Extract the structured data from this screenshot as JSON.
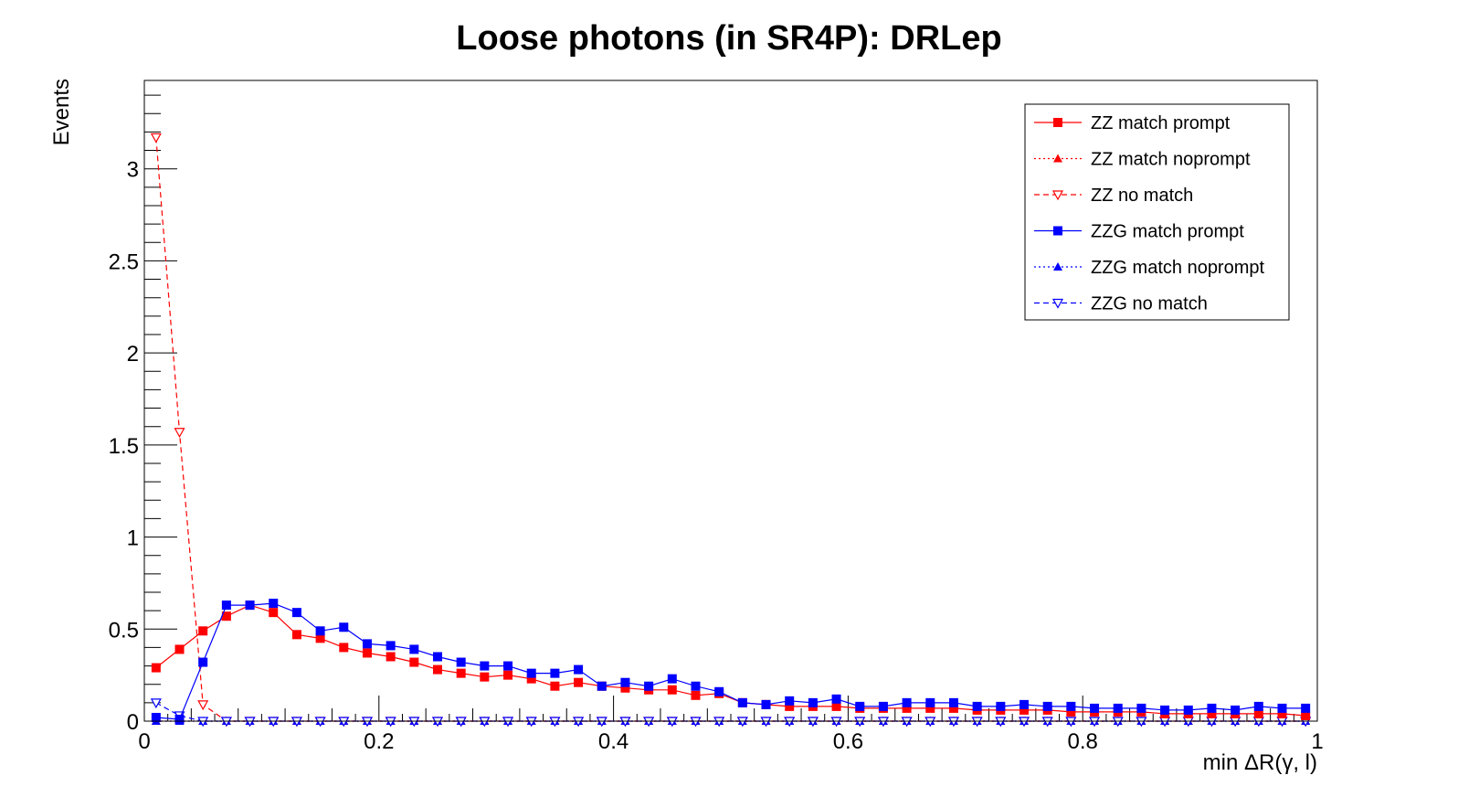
{
  "chart_data": {
    "type": "line",
    "title": "Loose photons (in SR4P): DRLep",
    "xlabel": "min ΔR(γ, l)",
    "ylabel": "Events",
    "xlim": [
      0,
      1
    ],
    "ylim": [
      0,
      3.48
    ],
    "x_ticks": [
      0,
      0.2,
      0.4,
      0.6,
      0.8,
      1
    ],
    "x_tick_labels": [
      "0",
      "0.2",
      "0.4",
      "0.6",
      "0.8",
      "1"
    ],
    "y_ticks": [
      0,
      0.5,
      1,
      1.5,
      2,
      2.5,
      3
    ],
    "y_tick_labels": [
      "0",
      "0.5",
      "1",
      "1.5",
      "2",
      "2.5",
      "3"
    ],
    "grid": false,
    "legend_position": "top-right",
    "x": [
      0.01,
      0.03,
      0.05,
      0.07,
      0.09,
      0.11,
      0.13,
      0.15,
      0.17,
      0.19,
      0.21,
      0.23,
      0.25,
      0.27,
      0.29,
      0.31,
      0.33,
      0.35,
      0.37,
      0.39,
      0.41,
      0.43,
      0.45,
      0.47,
      0.49,
      0.51,
      0.53,
      0.55,
      0.57,
      0.59,
      0.61,
      0.63,
      0.65,
      0.67,
      0.69,
      0.71,
      0.73,
      0.75,
      0.77,
      0.79,
      0.81,
      0.83,
      0.85,
      0.87,
      0.89,
      0.91,
      0.93,
      0.95,
      0.97,
      0.99
    ],
    "series": [
      {
        "name": "ZZ match prompt",
        "color": "#ff0000",
        "line_style": "solid",
        "marker": "square",
        "values": [
          0.29,
          0.39,
          0.49,
          0.57,
          0.63,
          0.59,
          0.47,
          0.45,
          0.4,
          0.37,
          0.35,
          0.32,
          0.28,
          0.26,
          0.24,
          0.25,
          0.23,
          0.19,
          0.21,
          0.19,
          0.18,
          0.17,
          0.17,
          0.14,
          0.15,
          0.1,
          0.09,
          0.08,
          0.08,
          0.08,
          0.07,
          0.07,
          0.07,
          0.07,
          0.07,
          0.06,
          0.06,
          0.06,
          0.06,
          0.05,
          0.05,
          0.05,
          0.05,
          0.04,
          0.04,
          0.04,
          0.04,
          0.04,
          0.04,
          0.03
        ]
      },
      {
        "name": "ZZ match noprompt",
        "color": "#ff0000",
        "line_style": "dotted",
        "marker": "triangle-up",
        "values": [
          0,
          0,
          0,
          0,
          0,
          0,
          0,
          0,
          0,
          0,
          0,
          0,
          0,
          0,
          0,
          0,
          0,
          0,
          0,
          0,
          0,
          0,
          0,
          0,
          0,
          0,
          0,
          0,
          0,
          0,
          0,
          0,
          0,
          0,
          0,
          0,
          0,
          0,
          0,
          0,
          0,
          0,
          0,
          0,
          0,
          0,
          0,
          0,
          0,
          0
        ]
      },
      {
        "name": "ZZ no match",
        "color": "#ff0000",
        "line_style": "dashed",
        "marker": "triangle-down-open",
        "values": [
          3.17,
          1.57,
          0.09,
          0,
          0,
          0,
          0,
          0,
          0,
          0,
          0,
          0,
          0,
          0,
          0,
          0,
          0,
          0,
          0,
          0,
          0,
          0,
          0,
          0,
          0,
          0,
          0,
          0,
          0,
          0,
          0,
          0,
          0,
          0,
          0,
          0,
          0,
          0,
          0,
          0,
          0,
          0,
          0,
          0,
          0,
          0,
          0,
          0,
          0,
          0
        ]
      },
      {
        "name": "ZZG match prompt",
        "color": "#0000ff",
        "line_style": "solid",
        "marker": "square",
        "values": [
          0.02,
          0.01,
          0.32,
          0.63,
          0.63,
          0.64,
          0.59,
          0.49,
          0.51,
          0.42,
          0.41,
          0.39,
          0.35,
          0.32,
          0.3,
          0.3,
          0.26,
          0.26,
          0.28,
          0.19,
          0.21,
          0.19,
          0.23,
          0.19,
          0.16,
          0.1,
          0.09,
          0.11,
          0.1,
          0.12,
          0.08,
          0.08,
          0.1,
          0.1,
          0.1,
          0.08,
          0.08,
          0.09,
          0.08,
          0.08,
          0.07,
          0.07,
          0.07,
          0.06,
          0.06,
          0.07,
          0.06,
          0.08,
          0.07,
          0.07
        ]
      },
      {
        "name": "ZZG match noprompt",
        "color": "#0000ff",
        "line_style": "dotted",
        "marker": "triangle-up",
        "values": [
          0,
          0,
          0,
          0,
          0,
          0,
          0,
          0,
          0,
          0,
          0,
          0,
          0,
          0,
          0,
          0,
          0,
          0,
          0,
          0,
          0,
          0,
          0,
          0,
          0,
          0,
          0,
          0,
          0,
          0,
          0,
          0,
          0,
          0,
          0,
          0,
          0,
          0,
          0,
          0,
          0,
          0,
          0,
          0,
          0,
          0,
          0,
          0,
          0,
          0
        ]
      },
      {
        "name": "ZZG no match",
        "color": "#0000ff",
        "line_style": "dashed",
        "marker": "triangle-down-open",
        "values": [
          0.1,
          0.03,
          0,
          0,
          0,
          0,
          0,
          0,
          0,
          0,
          0,
          0,
          0,
          0,
          0,
          0,
          0,
          0,
          0,
          0,
          0,
          0,
          0,
          0,
          0,
          0,
          0,
          0,
          0,
          0,
          0,
          0,
          0,
          0,
          0,
          0,
          0,
          0,
          0,
          0,
          0,
          0,
          0,
          0,
          0,
          0,
          0,
          0,
          0,
          0
        ]
      }
    ]
  }
}
